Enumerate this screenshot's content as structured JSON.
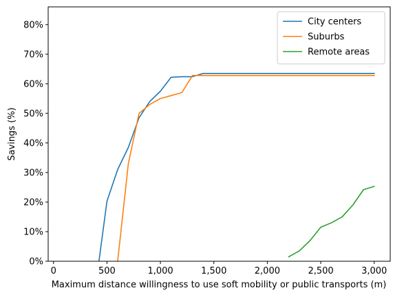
{
  "chart_data": {
    "type": "line",
    "xlabel": "Maximum distance willingness to use soft mobility or public transports (m)",
    "ylabel": "Savings (%)",
    "xlim": [
      -50,
      3150
    ],
    "ylim": [
      0,
      86
    ],
    "xticks": [
      0,
      500,
      1000,
      1500,
      2000,
      2500,
      3000
    ],
    "xtick_labels": [
      "0",
      "500",
      "1,000",
      "1,500",
      "2,000",
      "2,500",
      "3,000"
    ],
    "yticks": [
      0,
      10,
      20,
      30,
      40,
      50,
      60,
      70,
      80
    ],
    "ytick_labels": [
      "0%",
      "10%",
      "20%",
      "30%",
      "40%",
      "50%",
      "60%",
      "70%",
      "80%"
    ],
    "grid": false,
    "legend_position": "top-right",
    "series": [
      {
        "name": "City centers",
        "color": "#1f77b4",
        "x": [
          400,
          425,
          500,
          600,
          700,
          800,
          900,
          1000,
          1100,
          1200,
          1300,
          1400,
          1500,
          1600,
          1700,
          1800,
          1900,
          2000,
          2100,
          2200,
          2300,
          2400,
          2500,
          2600,
          2700,
          2800,
          2900,
          3000
        ],
        "y": [
          -5,
          0,
          20.3,
          31,
          38.5,
          48.5,
          54,
          57.5,
          62.2,
          62.4,
          62.4,
          63.5,
          63.5,
          63.5,
          63.5,
          63.5,
          63.5,
          63.5,
          63.5,
          63.5,
          63.5,
          63.5,
          63.5,
          63.5,
          63.5,
          63.5,
          63.5,
          63.5
        ]
      },
      {
        "name": "Suburbs",
        "color": "#ff7f0e",
        "x": [
          600,
          700,
          800,
          900,
          1000,
          1100,
          1200,
          1300,
          1400,
          1500,
          1600,
          1700,
          1800,
          1900,
          2000,
          2100,
          2200,
          2300,
          2400,
          2500,
          2600,
          2700,
          2800,
          2900,
          3000
        ],
        "y": [
          0,
          33,
          50,
          53,
          55,
          56,
          57,
          62.8,
          62.8,
          62.8,
          62.8,
          62.8,
          62.8,
          62.8,
          62.8,
          62.8,
          62.8,
          62.8,
          62.8,
          62.8,
          62.8,
          62.8,
          62.8,
          62.8,
          62.8
        ]
      },
      {
        "name": "Remote areas",
        "color": "#2ca02c",
        "x": [
          2200,
          2300,
          2400,
          2500,
          2600,
          2700,
          2800,
          2900,
          3000
        ],
        "y": [
          1.5,
          3.5,
          7,
          11.5,
          13,
          15,
          19,
          24.2,
          25.3
        ]
      }
    ]
  }
}
